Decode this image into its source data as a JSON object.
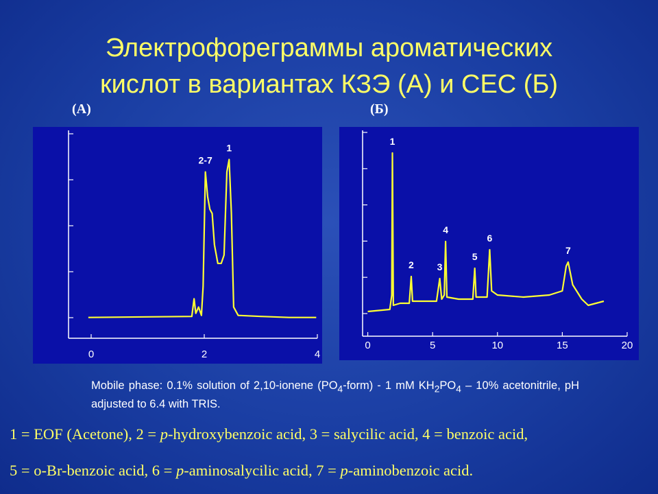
{
  "title": [
    "Электрофореграммы ароматических",
    "кислот в вариантах КЗЭ (А) и СЕС (Б)"
  ],
  "chart_data": [
    {
      "type": "line",
      "title": "(А)",
      "xlim": [
        -0.4,
        4.0
      ],
      "xticks": [
        0,
        2,
        4
      ],
      "ylim": [
        0,
        100
      ],
      "series": [
        {
          "color": "#ffff33",
          "x": [
            -0.05,
            1.78,
            1.82,
            1.85,
            1.9,
            1.95,
            1.98,
            2.02,
            2.06,
            2.1,
            2.14,
            2.18,
            2.24,
            2.3,
            2.35,
            2.4,
            2.44,
            2.48,
            2.52,
            2.6,
            3.0,
            3.5,
            3.98
          ],
          "values": [
            10,
            10.5,
            19,
            12,
            15,
            11,
            25,
            80,
            68,
            62,
            60,
            45,
            36,
            36,
            40,
            80,
            86,
            60,
            15,
            11,
            10.5,
            10,
            10
          ]
        }
      ],
      "annotations": [
        {
          "text": "2-7",
          "x": 2.02,
          "y": 80
        },
        {
          "text": "1",
          "x": 2.44,
          "y": 86
        }
      ]
    },
    {
      "type": "line",
      "title": "(Б)",
      "xlim": [
        -0.4,
        20
      ],
      "xticks": [
        0,
        5,
        10,
        15,
        20
      ],
      "ylim": [
        0,
        100
      ],
      "series": [
        {
          "color": "#ffff33",
          "x": [
            0,
            1.7,
            1.85,
            1.9,
            1.97,
            2.5,
            3.2,
            3.35,
            3.45,
            5.3,
            5.55,
            5.7,
            5.9,
            6.0,
            6.1,
            7,
            8.1,
            8.25,
            8.35,
            9.2,
            9.4,
            9.55,
            10,
            12,
            14,
            15,
            15.3,
            15.45,
            15.8,
            16.5,
            17,
            18.2
          ],
          "values": [
            12,
            13,
            20,
            89,
            15,
            16,
            16,
            29,
            17,
            17,
            28,
            18,
            20,
            46,
            19,
            18,
            18,
            33,
            19,
            19,
            42,
            22,
            20,
            19,
            20,
            22,
            34,
            36,
            25,
            18,
            15,
            17
          ]
        }
      ],
      "annotations": [
        {
          "text": "1",
          "x": 1.9,
          "y": 89
        },
        {
          "text": "2",
          "x": 3.35,
          "y": 29
        },
        {
          "text": "3",
          "x": 5.55,
          "y": 28
        },
        {
          "text": "4",
          "x": 6.0,
          "y": 46
        },
        {
          "text": "5",
          "x": 8.25,
          "y": 33
        },
        {
          "text": "6",
          "x": 9.4,
          "y": 42
        },
        {
          "text": "7",
          "x": 15.45,
          "y": 36
        }
      ]
    }
  ],
  "caption": [
    "Mobile phase: 0.1% solution of 2,10-ionene (PO",
    "4",
    "-form) - 1 mM KH",
    "2",
    "PO",
    "4",
    " – 10% acetonitrile, pH adjusted to 6.4 with TRIS."
  ],
  "key": [
    [
      "1 = EOF (Acetone), 2 = ",
      "p",
      "-hydroxybenzoic acid, 3 = salycilic acid, 4 = benzoic acid,"
    ],
    [
      "5 = o-Br-benzoic acid, 6 = ",
      "p",
      "-aminosalycilic acid, 7 = ",
      "p",
      "-aminobenzoic acid."
    ]
  ]
}
